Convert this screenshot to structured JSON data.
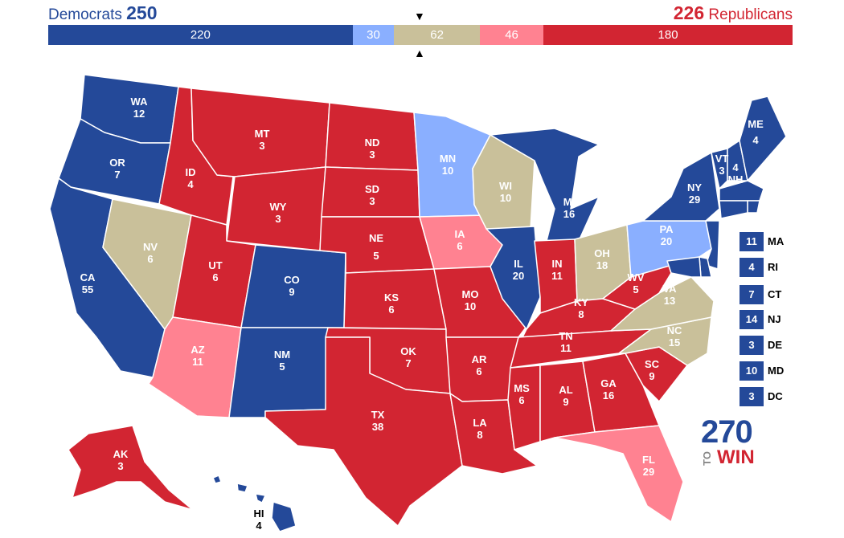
{
  "header": {
    "dem_label": "Democrats",
    "dem_total": "250",
    "rep_total": "226",
    "rep_label": "Republicans"
  },
  "colors": {
    "safe_dem": "#244999",
    "lean_dem": "#8aafff",
    "tossup": "#c9c09a",
    "lean_rep": "#ff8291",
    "safe_rep": "#d22532"
  },
  "bar": [
    {
      "value": "220",
      "votes": 220,
      "category": "safe_dem"
    },
    {
      "value": "30",
      "votes": 30,
      "category": "lean_dem"
    },
    {
      "value": "62",
      "votes": 62,
      "category": "tossup"
    },
    {
      "value": "46",
      "votes": 46,
      "category": "lean_rep"
    },
    {
      "value": "180",
      "votes": 180,
      "category": "safe_rep"
    }
  ],
  "markers": {
    "top": "▼",
    "bottom": "▲"
  },
  "states": {
    "WA": {
      "abbr": "WA",
      "ev": "12",
      "category": "safe_dem"
    },
    "OR": {
      "abbr": "OR",
      "ev": "7",
      "category": "safe_dem"
    },
    "CA": {
      "abbr": "CA",
      "ev": "55",
      "category": "safe_dem"
    },
    "NV": {
      "abbr": "NV",
      "ev": "6",
      "category": "tossup"
    },
    "ID": {
      "abbr": "ID",
      "ev": "4",
      "category": "safe_rep"
    },
    "MT": {
      "abbr": "MT",
      "ev": "3",
      "category": "safe_rep"
    },
    "WY": {
      "abbr": "WY",
      "ev": "3",
      "category": "safe_rep"
    },
    "UT": {
      "abbr": "UT",
      "ev": "6",
      "category": "safe_rep"
    },
    "AZ": {
      "abbr": "AZ",
      "ev": "11",
      "category": "lean_rep"
    },
    "CO": {
      "abbr": "CO",
      "ev": "9",
      "category": "safe_dem"
    },
    "NM": {
      "abbr": "NM",
      "ev": "5",
      "category": "safe_dem"
    },
    "ND": {
      "abbr": "ND",
      "ev": "3",
      "category": "safe_rep"
    },
    "SD": {
      "abbr": "SD",
      "ev": "3",
      "category": "safe_rep"
    },
    "NE": {
      "abbr": "NE",
      "ev": "5",
      "category": "safe_rep"
    },
    "KS": {
      "abbr": "KS",
      "ev": "6",
      "category": "safe_rep"
    },
    "OK": {
      "abbr": "OK",
      "ev": "7",
      "category": "safe_rep"
    },
    "TX": {
      "abbr": "TX",
      "ev": "38",
      "category": "safe_rep"
    },
    "MN": {
      "abbr": "MN",
      "ev": "10",
      "category": "lean_dem"
    },
    "IA": {
      "abbr": "IA",
      "ev": "6",
      "category": "lean_rep"
    },
    "MO": {
      "abbr": "MO",
      "ev": "10",
      "category": "safe_rep"
    },
    "AR": {
      "abbr": "AR",
      "ev": "6",
      "category": "safe_rep"
    },
    "LA": {
      "abbr": "LA",
      "ev": "8",
      "category": "safe_rep"
    },
    "WI": {
      "abbr": "WI",
      "ev": "10",
      "category": "tossup"
    },
    "IL": {
      "abbr": "IL",
      "ev": "20",
      "category": "safe_dem"
    },
    "MI": {
      "abbr": "MI",
      "ev": "16",
      "category": "safe_dem"
    },
    "IN": {
      "abbr": "IN",
      "ev": "11",
      "category": "safe_rep"
    },
    "OH": {
      "abbr": "OH",
      "ev": "18",
      "category": "tossup"
    },
    "KY": {
      "abbr": "KY",
      "ev": "8",
      "category": "safe_rep"
    },
    "TN": {
      "abbr": "TN",
      "ev": "11",
      "category": "safe_rep"
    },
    "MS": {
      "abbr": "MS",
      "ev": "6",
      "category": "safe_rep"
    },
    "AL": {
      "abbr": "AL",
      "ev": "9",
      "category": "safe_rep"
    },
    "GA": {
      "abbr": "GA",
      "ev": "16",
      "category": "safe_rep"
    },
    "FL": {
      "abbr": "FL",
      "ev": "29",
      "category": "lean_rep"
    },
    "SC": {
      "abbr": "SC",
      "ev": "9",
      "category": "safe_rep"
    },
    "NC": {
      "abbr": "NC",
      "ev": "15",
      "category": "tossup"
    },
    "VA": {
      "abbr": "VA",
      "ev": "13",
      "category": "tossup"
    },
    "WV": {
      "abbr": "WV",
      "ev": "5",
      "category": "safe_rep"
    },
    "PA": {
      "abbr": "PA",
      "ev": "20",
      "category": "lean_dem"
    },
    "NY": {
      "abbr": "NY",
      "ev": "29",
      "category": "safe_dem"
    },
    "VT": {
      "abbr": "VT",
      "ev": "3",
      "category": "safe_dem"
    },
    "NH": {
      "abbr": "NH",
      "ev": "4",
      "category": "safe_dem"
    },
    "ME": {
      "abbr": "ME",
      "ev": "4",
      "category": "safe_dem"
    },
    "AK": {
      "abbr": "AK",
      "ev": "3",
      "category": "safe_rep"
    },
    "HI": {
      "abbr": "HI",
      "ev": "4",
      "category": "safe_dem"
    }
  },
  "small_states": [
    {
      "ev": "11",
      "abbr": "MA"
    },
    {
      "ev": "4",
      "abbr": "RI"
    },
    {
      "ev": "7",
      "abbr": "CT"
    },
    {
      "ev": "14",
      "abbr": "NJ"
    },
    {
      "ev": "3",
      "abbr": "DE"
    },
    {
      "ev": "10",
      "abbr": "MD"
    },
    {
      "ev": "3",
      "abbr": "DC"
    }
  ],
  "logo": {
    "number": "270",
    "to": "TO",
    "win": "WIN"
  }
}
